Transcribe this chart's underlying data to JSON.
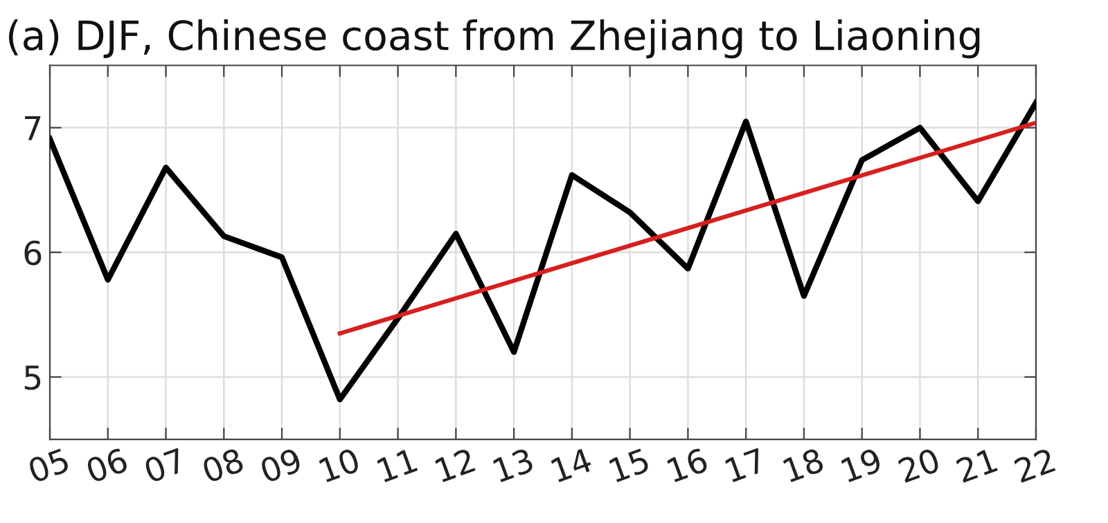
{
  "chart_data": {
    "type": "line",
    "title": "(a) DJF, Chinese coast from Zhejiang to Liaoning",
    "x": [
      2005,
      2006,
      2007,
      2008,
      2009,
      2010,
      2011,
      2012,
      2013,
      2014,
      2015,
      2016,
      2017,
      2018,
      2019,
      2020,
      2021,
      2022
    ],
    "series": [
      {
        "color": "#000000",
        "values": [
          6.91,
          5.78,
          6.68,
          6.13,
          5.96,
          4.82,
          5.47,
          6.15,
          5.2,
          6.62,
          6.32,
          5.87,
          7.05,
          5.65,
          6.74,
          7.0,
          6.41,
          7.2
        ]
      },
      {
        "type": "line",
        "color": "#d62020",
        "x": [
          2010,
          2022
        ],
        "values": [
          5.35,
          7.04
        ]
      }
    ],
    "xlim": [
      2005,
      2022
    ],
    "xticks": [
      {
        "value": 2005,
        "label": "05"
      },
      {
        "value": 2006,
        "label": "06"
      },
      {
        "value": 2007,
        "label": "07"
      },
      {
        "value": 2008,
        "label": "08"
      },
      {
        "value": 2009,
        "label": "09"
      },
      {
        "value": 2010,
        "label": "10"
      },
      {
        "value": 2011,
        "label": "11"
      },
      {
        "value": 2012,
        "label": "12"
      },
      {
        "value": 2013,
        "label": "13"
      },
      {
        "value": 2014,
        "label": "14"
      },
      {
        "value": 2015,
        "label": "15"
      },
      {
        "value": 2016,
        "label": "16"
      },
      {
        "value": 2017,
        "label": "17"
      },
      {
        "value": 2018,
        "label": "18"
      },
      {
        "value": 2019,
        "label": "19"
      },
      {
        "value": 2020,
        "label": "20"
      },
      {
        "value": 2021,
        "label": "21"
      },
      {
        "value": 2022,
        "label": "22"
      }
    ],
    "ylim": [
      4.5,
      7.5
    ],
    "yticks": [
      5,
      6,
      7
    ],
    "grid": true,
    "marker": "none",
    "line_style": "solid"
  }
}
